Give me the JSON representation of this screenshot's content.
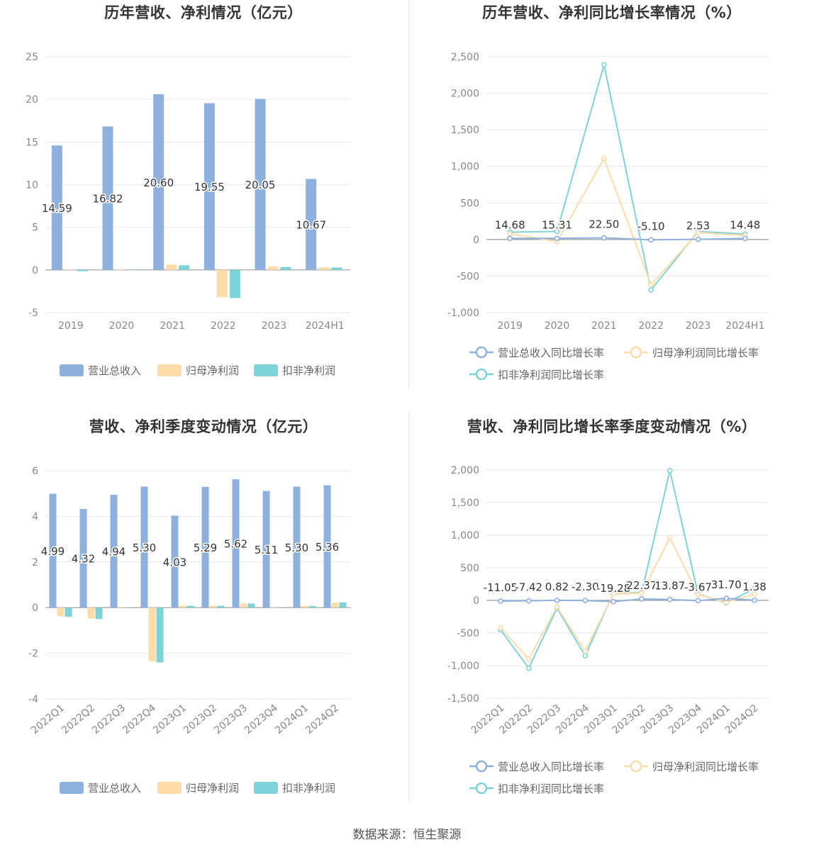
{
  "footer": "数据来源：恒生聚源",
  "colors": {
    "revenue": "#8eb0dc",
    "parent": "#fddcaa",
    "deducted": "#7ed3d8",
    "grid": "#e6e6ee",
    "axis": "#aaaaaa"
  },
  "chart_data": [
    {
      "id": "annual",
      "type": "bar",
      "title": "历年营收、净利情况（亿元）",
      "categories": [
        "2019",
        "2020",
        "2021",
        "2022",
        "2023",
        "2024H1"
      ],
      "series": [
        {
          "name": "营业总收入",
          "values": [
            14.59,
            16.82,
            20.6,
            19.55,
            20.05,
            10.67
          ],
          "labels": [
            "14.59",
            "16.82",
            "20.60",
            "19.55",
            "20.05",
            "10.67"
          ]
        },
        {
          "name": "归母净利润",
          "values": [
            0.03,
            0.02,
            0.62,
            -3.2,
            0.42,
            0.31
          ]
        },
        {
          "name": "扣非净利润",
          "values": [
            -0.15,
            0.03,
            0.55,
            -3.3,
            0.34,
            0.28
          ]
        }
      ],
      "y_ticks": [
        "-5",
        "0",
        "5",
        "10",
        "15",
        "20",
        "25"
      ],
      "ylim": [
        -5,
        25
      ],
      "legend": "bottom"
    },
    {
      "id": "annual_growth",
      "type": "line",
      "title": "历年营收、净利同比增长率情况（%）",
      "categories": [
        "2019",
        "2020",
        "2021",
        "2022",
        "2023",
        "2024H1"
      ],
      "series": [
        {
          "name": "营业总收入同比增长率",
          "values": [
            14.68,
            15.31,
            22.5,
            -5.1,
            2.53,
            14.48
          ],
          "labels": [
            "14.68",
            "15.31",
            "22.50",
            "-5.10",
            "2.53",
            "14.48"
          ]
        },
        {
          "name": "归母净利润同比增长率",
          "values": [
            80,
            -30,
            1110,
            -620,
            95,
            55
          ]
        },
        {
          "name": "扣非净利润同比增长率",
          "values": [
            100,
            110,
            2390,
            -690,
            110,
            75
          ]
        }
      ],
      "y_ticks": [
        "-1,000",
        "-500",
        "0",
        "500",
        "1,000",
        "1,500",
        "2,000",
        "2,500"
      ],
      "ylim": [
        -1000,
        2500
      ],
      "legend": "bottom"
    },
    {
      "id": "quarterly",
      "type": "bar",
      "title": "营收、净利季度变动情况（亿元）",
      "categories": [
        "2022Q1",
        "2022Q2",
        "2022Q3",
        "2022Q4",
        "2023Q1",
        "2023Q2",
        "2023Q3",
        "2023Q4",
        "2024Q1",
        "2024Q2"
      ],
      "series": [
        {
          "name": "营业总收入",
          "values": [
            4.99,
            4.32,
            4.94,
            5.3,
            4.03,
            5.29,
            5.62,
            5.11,
            5.3,
            5.36
          ],
          "labels": [
            "4.99",
            "4.32",
            "4.94",
            "5.30",
            "4.03",
            "5.29",
            "5.62",
            "5.11",
            "5.30",
            "5.36"
          ]
        },
        {
          "name": "归母净利润",
          "values": [
            -0.38,
            -0.48,
            0.02,
            -2.35,
            0.09,
            0.09,
            0.18,
            0.01,
            0.07,
            0.22
          ]
        },
        {
          "name": "扣非净利润",
          "values": [
            -0.4,
            -0.5,
            0.01,
            -2.4,
            0.08,
            0.08,
            0.18,
            0.01,
            0.07,
            0.23
          ]
        }
      ],
      "y_ticks": [
        "-4",
        "-2",
        "0",
        "2",
        "4",
        "6"
      ],
      "ylim": [
        -4,
        6
      ],
      "legend": "bottom"
    },
    {
      "id": "quarterly_growth",
      "type": "line",
      "title": "营收、净利同比增长率季度变动情况（%）",
      "categories": [
        "2022Q1",
        "2022Q2",
        "2022Q3",
        "2022Q4",
        "2023Q1",
        "2023Q2",
        "2023Q3",
        "2023Q4",
        "2024Q1",
        "2024Q2"
      ],
      "series": [
        {
          "name": "营业总收入同比增长率",
          "values": [
            -11.05,
            -7.42,
            0.82,
            -2.3,
            -19.28,
            22.37,
            13.87,
            -3.67,
            31.7,
            1.38
          ],
          "labels": [
            "-11.05",
            "-7.42",
            "0.82",
            "-2.30",
            "-19.28",
            "22.37",
            "13.87",
            "-3.67",
            "31.70",
            "1.38"
          ]
        },
        {
          "name": "归母净利润同比增长率",
          "values": [
            -420,
            -900,
            -100,
            -780,
            100,
            110,
            960,
            90,
            -30,
            100
          ]
        },
        {
          "name": "扣非净利润同比增长率",
          "values": [
            -450,
            -1040,
            -120,
            -850,
            110,
            120,
            1990,
            100,
            -40,
            180
          ]
        }
      ],
      "y_ticks": [
        "-1,500",
        "-1,000",
        "-500",
        "0",
        "500",
        "1,000",
        "1,500",
        "2,000"
      ],
      "ylim": [
        -1500,
        2000
      ],
      "legend": "bottom"
    }
  ]
}
